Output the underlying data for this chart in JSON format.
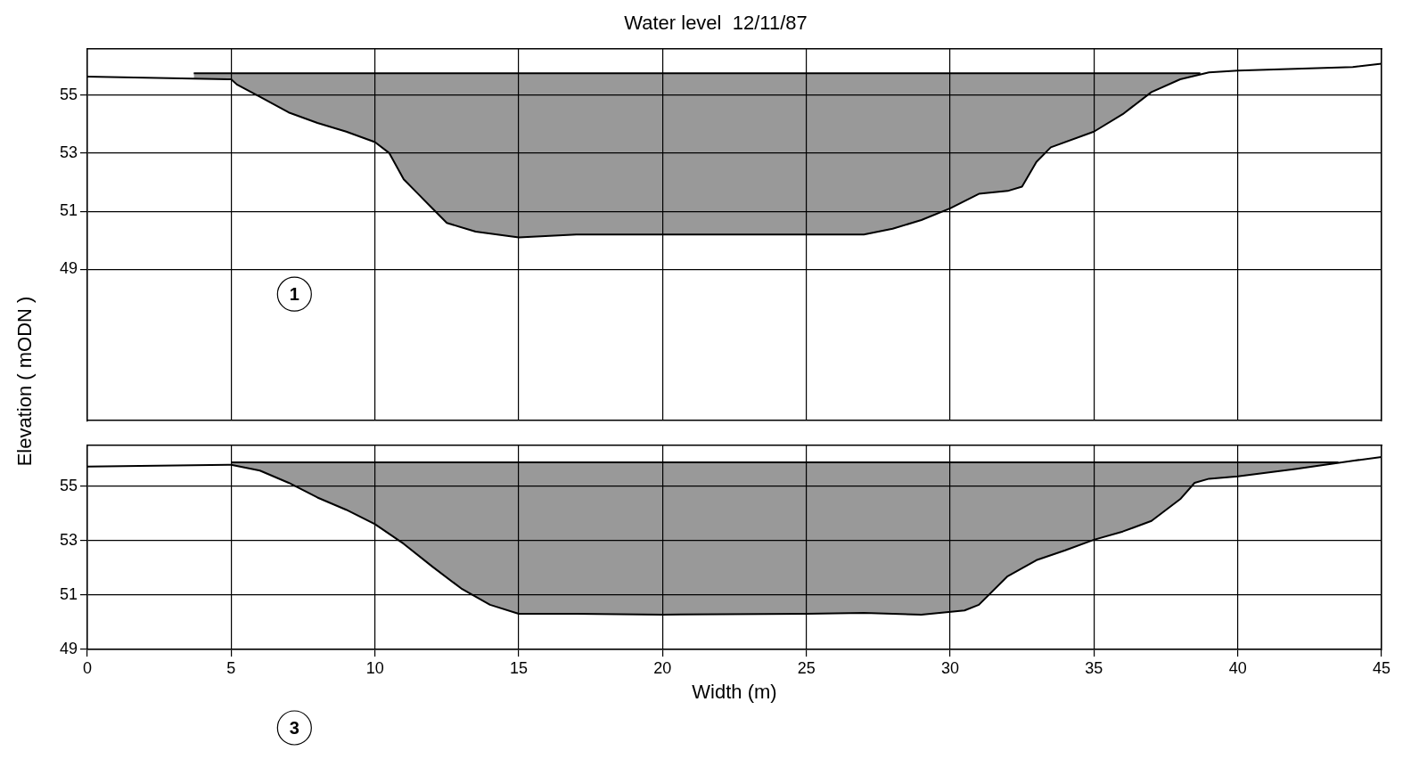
{
  "chart_data": [
    {
      "type": "line",
      "title": "Water level  12/11/87",
      "ylabel": "Elevation  ( mODN )",
      "xlim": [
        0,
        45
      ],
      "xticks": [
        0,
        5,
        10,
        15,
        20,
        25,
        30,
        35,
        40,
        45
      ],
      "ylim": [
        43.8,
        56.6
      ],
      "yticks": [
        49,
        51,
        53,
        55
      ],
      "grid": true,
      "tick_labels": "y",
      "annotations": [
        "1"
      ],
      "series": [
        {
          "type": "line",
          "color": "#000000",
          "x": [
            0,
            5,
            5.2,
            6,
            7,
            8,
            9,
            10,
            10.5,
            11,
            11.5,
            12,
            12.5,
            13.5,
            15,
            17,
            20,
            25,
            27,
            28,
            29,
            30,
            31,
            32,
            32.5,
            33,
            33.5,
            35,
            36,
            37,
            38,
            39,
            40,
            42,
            44,
            45
          ],
          "values": [
            55.63,
            55.54,
            55.36,
            54.94,
            54.4,
            54.04,
            53.74,
            53.38,
            53.0,
            52.1,
            51.6,
            51.1,
            50.6,
            50.3,
            50.1,
            50.2,
            50.2,
            50.2,
            50.2,
            50.4,
            50.7,
            51.1,
            51.6,
            51.7,
            51.85,
            52.7,
            53.2,
            53.74,
            54.34,
            55.1,
            55.54,
            55.78,
            55.84,
            55.9,
            55.96,
            56.08
          ]
        },
        {
          "type": "line",
          "color": "#000000",
          "x": [
            3.7,
            5,
            5.2,
            6,
            7,
            8,
            9,
            10,
            10.5,
            11,
            11.5,
            12,
            12.5,
            13.5,
            15,
            17,
            20,
            25,
            27,
            28,
            29,
            30,
            31,
            32,
            32.5,
            33,
            33.5,
            35,
            36,
            37,
            38,
            38.7
          ],
          "values": [
            55.75,
            55.75,
            55.75,
            55.75,
            55.75,
            55.75,
            55.75,
            55.75,
            55.75,
            55.75,
            55.75,
            55.75,
            55.75,
            55.75,
            55.75,
            55.75,
            55.75,
            55.75,
            55.75,
            55.75,
            55.75,
            55.75,
            55.75,
            55.75,
            55.75,
            55.75,
            55.75,
            55.75,
            55.75,
            55.75,
            55.75,
            55.75
          ],
          "lower": [
            55.56,
            55.54,
            55.36,
            54.94,
            54.4,
            54.04,
            53.74,
            53.38,
            53.0,
            52.1,
            51.6,
            51.1,
            50.6,
            50.3,
            50.1,
            50.2,
            50.2,
            50.2,
            50.2,
            50.4,
            50.7,
            51.1,
            51.6,
            51.7,
            51.85,
            52.7,
            53.2,
            53.74,
            54.34,
            55.1,
            55.54,
            55.71
          ],
          "upper": [
            55.75,
            55.75,
            55.75,
            55.75,
            55.75,
            55.75,
            55.75,
            55.75,
            55.75,
            55.75,
            55.75,
            55.75,
            55.75,
            55.75,
            55.75,
            55.75,
            55.75,
            55.75,
            55.75,
            55.75,
            55.75,
            55.75,
            55.75,
            55.75,
            55.75,
            55.75,
            55.75,
            55.75,
            55.75,
            55.75,
            55.75,
            55.75
          ]
        }
      ]
    },
    {
      "type": "line",
      "xlabel": "Width (m)",
      "xlim": [
        0,
        45
      ],
      "xticks": [
        0,
        5,
        10,
        15,
        20,
        25,
        30,
        35,
        40,
        45
      ],
      "ylim": [
        49,
        56.5
      ],
      "yticks": [
        49,
        51,
        53,
        55
      ],
      "grid": true,
      "annotations": [
        "3"
      ],
      "series": [
        {
          "type": "line",
          "color": "#000000",
          "x": [
            0,
            5,
            6,
            7,
            8,
            9,
            10,
            11,
            12,
            13,
            14,
            15,
            17,
            20,
            25,
            27,
            29,
            30.5,
            31,
            32,
            33,
            34,
            35,
            36,
            37,
            38,
            38.5,
            39,
            40,
            42,
            44,
            45
          ],
          "values": [
            55.72,
            55.78,
            55.57,
            55.12,
            54.58,
            54.13,
            53.6,
            52.88,
            52.04,
            51.24,
            50.64,
            50.31,
            50.31,
            50.28,
            50.31,
            50.34,
            50.28,
            50.43,
            50.64,
            51.69,
            52.28,
            52.64,
            53.03,
            53.33,
            53.72,
            54.52,
            55.12,
            55.27,
            55.36,
            55.63,
            55.93,
            56.07
          ]
        },
        {
          "type": "line",
          "color": "#000000",
          "x": [
            5,
            6,
            7,
            8,
            9,
            10,
            11,
            12,
            13,
            14,
            15,
            17,
            20,
            25,
            27,
            29,
            30.5,
            31,
            32,
            33,
            34,
            35,
            36,
            37,
            38,
            38.5,
            39,
            40,
            42,
            43.5
          ],
          "values": [
            55.87,
            55.87,
            55.87,
            55.87,
            55.87,
            55.87,
            55.87,
            55.87,
            55.87,
            55.87,
            55.87,
            55.87,
            55.87,
            55.87,
            55.87,
            55.87,
            55.87,
            55.87,
            55.87,
            55.87,
            55.87,
            55.87,
            55.87,
            55.87,
            55.87,
            55.87,
            55.87,
            55.87,
            55.87,
            55.87
          ],
          "lower": [
            55.78,
            55.57,
            55.12,
            54.58,
            54.13,
            53.6,
            52.88,
            52.04,
            51.24,
            50.64,
            50.31,
            50.31,
            50.28,
            50.31,
            50.34,
            50.28,
            50.43,
            50.64,
            51.69,
            52.28,
            52.64,
            53.03,
            53.33,
            53.72,
            54.52,
            55.12,
            55.27,
            55.36,
            55.63,
            55.86
          ],
          "upper": [
            55.87,
            55.87,
            55.87,
            55.87,
            55.87,
            55.87,
            55.87,
            55.87,
            55.87,
            55.87,
            55.87,
            55.87,
            55.87,
            55.87,
            55.87,
            55.87,
            55.87,
            55.87,
            55.87,
            55.87,
            55.87,
            55.87,
            55.87,
            55.87,
            55.87,
            55.87,
            55.87,
            55.87,
            55.87,
            55.87
          ]
        }
      ]
    }
  ]
}
